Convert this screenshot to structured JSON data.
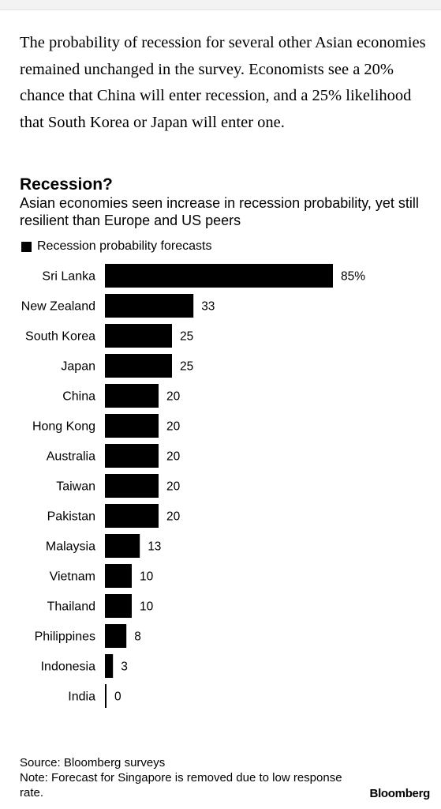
{
  "intro_text": "The probability of recession for several other Asian economies remained unchanged in the survey. Economists see a 20% chance that China will enter recession, and a 25% likelihood that South Korea or Japan will enter one.",
  "chart_data": {
    "type": "bar",
    "orientation": "horizontal",
    "title": "Recession?",
    "subtitle": "Asian economies seen increase in recession probability, yet still resilient than Europe and US peers",
    "legend": [
      {
        "label": "Recession probability forecasts",
        "color": "#000000"
      }
    ],
    "categories": [
      "Sri Lanka",
      "New Zealand",
      "South Korea",
      "Japan",
      "China",
      "Hong Kong",
      "Australia",
      "Taiwan",
      "Pakistan",
      "Malaysia",
      "Vietnam",
      "Thailand",
      "Philippines",
      "Indonesia",
      "India"
    ],
    "values": [
      85,
      33,
      25,
      25,
      20,
      20,
      20,
      20,
      20,
      13,
      10,
      10,
      8,
      3,
      0
    ],
    "value_labels": [
      "85%",
      "33",
      "25",
      "25",
      "20",
      "20",
      "20",
      "20",
      "20",
      "13",
      "10",
      "10",
      "8",
      "3",
      "0"
    ],
    "xlim": [
      0,
      85
    ],
    "bar_color": "#000000",
    "grid": false
  },
  "source": "Source: Bloomberg surveys",
  "note": "Note: Forecast for Singapore is removed due to low response rate.",
  "brand": "Bloomberg"
}
